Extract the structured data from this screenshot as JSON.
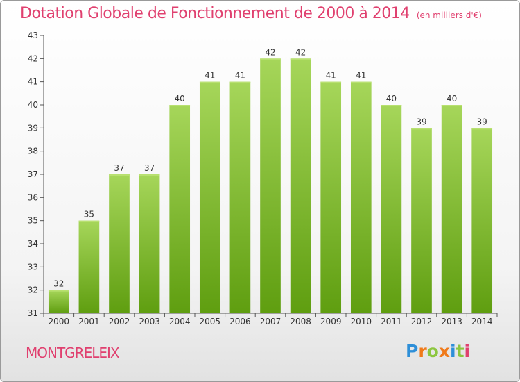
{
  "header": {
    "title": "Dotation Globale de Fonctionnement de 2000 à 2014",
    "subtitle": "(en milliers d'€)"
  },
  "footer": {
    "commune": "MONTGRELEIX",
    "logo": "Proxiti"
  },
  "colors": {
    "title": "#e0406f",
    "bar_top": "#a6d65a",
    "bar_bottom": "#5f9e10",
    "logo_letters": [
      "#2e8fd8",
      "#f07a1a",
      "#8cc63f",
      "#f07a1a",
      "#2e8fd8",
      "#8cc63f",
      "#e0406f"
    ]
  },
  "chart_data": {
    "type": "bar",
    "title": "Dotation Globale de Fonctionnement de 2000 à 2014",
    "subtitle": "(en milliers d'€)",
    "categories": [
      "2000",
      "2001",
      "2002",
      "2003",
      "2004",
      "2005",
      "2006",
      "2007",
      "2008",
      "2009",
      "2010",
      "2011",
      "2012",
      "2013",
      "2014"
    ],
    "values": [
      32,
      35,
      37,
      37,
      40,
      41,
      41,
      42,
      42,
      41,
      41,
      40,
      39,
      40,
      39
    ],
    "ylim": [
      31,
      43
    ],
    "yticks": [
      31,
      32,
      33,
      34,
      35,
      36,
      37,
      38,
      39,
      40,
      41,
      42,
      43
    ],
    "grid": false,
    "legend": "none"
  }
}
